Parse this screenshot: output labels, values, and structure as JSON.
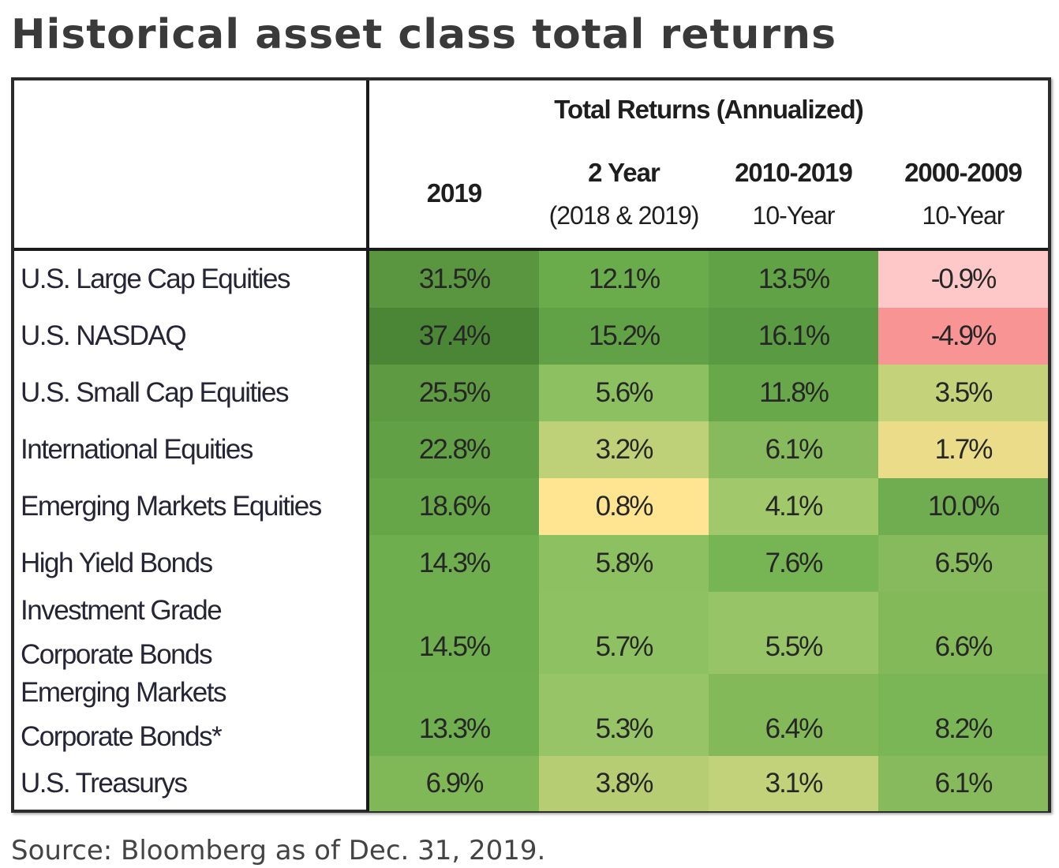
{
  "title": "Historical asset class total returns",
  "source": "Source: Bloomberg as of Dec. 31, 2019.",
  "chart_data": {
    "type": "table",
    "title": "Historical asset class total returns",
    "group_header": "Total Returns (Annualized)",
    "columns": [
      {
        "label": "2019",
        "sub": ""
      },
      {
        "label": "2 Year",
        "sub": "(2018 & 2019)"
      },
      {
        "label": "2010-2019",
        "sub": "10-Year"
      },
      {
        "label": "2000-2009",
        "sub": "10-Year"
      }
    ],
    "rows": [
      {
        "label": [
          "U.S. Large Cap Equities"
        ],
        "values": [
          "31.5%",
          "12.1%",
          "13.5%",
          "-0.9%"
        ],
        "colors": [
          "#5a9640",
          "#6aab4c",
          "#62a247",
          "#ffc8c8"
        ]
      },
      {
        "label": [
          "U.S. NASDAQ"
        ],
        "values": [
          "37.4%",
          "15.2%",
          "16.1%",
          "-4.9%"
        ],
        "colors": [
          "#4a8636",
          "#62a247",
          "#5a9a42",
          "#f99494"
        ]
      },
      {
        "label": [
          "U.S. Small Cap Equities"
        ],
        "values": [
          "25.5%",
          "5.6%",
          "11.8%",
          "3.5%"
        ],
        "colors": [
          "#5e9a42",
          "#8cc060",
          "#68a84a",
          "#c4d27a"
        ]
      },
      {
        "label": [
          "International Equities"
        ],
        "values": [
          "22.8%",
          "3.2%",
          "6.1%",
          "1.7%"
        ],
        "colors": [
          "#62a046",
          "#bed078",
          "#86ba5c",
          "#ebdc8a"
        ]
      },
      {
        "label": [
          "Emerging Markets Equities"
        ],
        "values": [
          "18.6%",
          "0.8%",
          "4.1%",
          "10.0%"
        ],
        "colors": [
          "#66a649",
          "#ffe592",
          "#a2c86c",
          "#70ad50"
        ]
      },
      {
        "label": [
          "High Yield Bonds"
        ],
        "values": [
          "14.3%",
          "5.8%",
          "7.6%",
          "6.5%"
        ],
        "colors": [
          "#6eae4f",
          "#8cc060",
          "#76b454",
          "#86ba5c"
        ]
      },
      {
        "label": [
          "Investment Grade",
          "Corporate Bonds"
        ],
        "values": [
          "14.5%",
          "5.7%",
          "5.5%",
          "6.6%"
        ],
        "colors": [
          "#6eae4f",
          "#8ec162",
          "#96c466",
          "#84b95a"
        ]
      },
      {
        "label": [
          "Emerging Markets",
          "Corporate Bonds*"
        ],
        "values": [
          "13.3%",
          "5.3%",
          "6.4%",
          "8.2%"
        ],
        "colors": [
          "#70af50",
          "#96c466",
          "#84b95a",
          "#7ab656"
        ]
      },
      {
        "label": [
          "U.S. Treasurys"
        ],
        "values": [
          "6.9%",
          "3.8%",
          "3.1%",
          "6.1%"
        ],
        "colors": [
          "#80b858",
          "#b6cd74",
          "#c2d27a",
          "#86ba5c"
        ]
      }
    ]
  }
}
